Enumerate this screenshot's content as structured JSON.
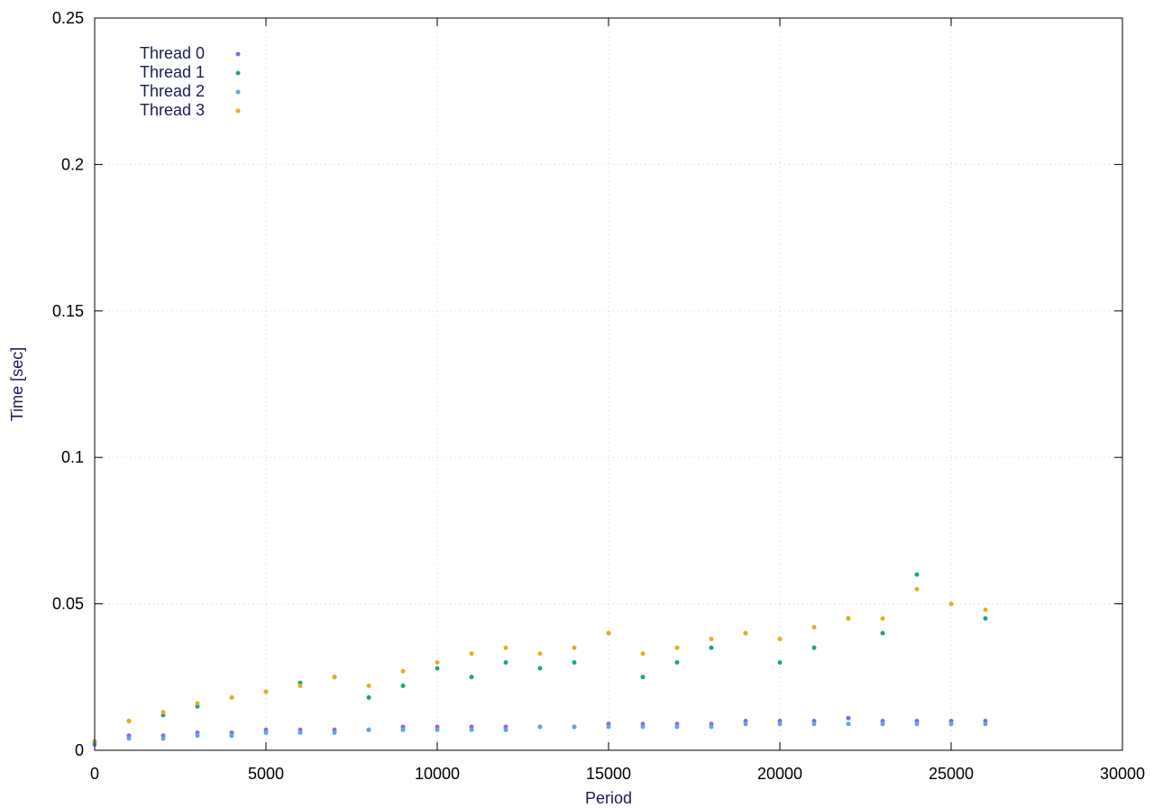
{
  "chart_data": {
    "type": "scatter",
    "title": "",
    "xlabel": "Period",
    "ylabel": "Time [sec]",
    "xlim": [
      0,
      30000
    ],
    "ylim": [
      0,
      0.25
    ],
    "xticks": [
      "0",
      "5000",
      "10000",
      "15000",
      "20000",
      "25000",
      "30000"
    ],
    "yticks": [
      "0",
      "0.05",
      "0.1",
      "0.15",
      "0.2",
      "0.25"
    ],
    "grid": true,
    "legend_position": "top-left",
    "series": [
      {
        "name": "Thread 0",
        "color": "#9467d8",
        "x": [
          0,
          1000,
          2000,
          3000,
          4000,
          5000,
          6000,
          7000,
          8000,
          9000,
          10000,
          11000,
          12000,
          13000,
          14000,
          15000,
          16000,
          17000,
          18000,
          19000,
          20000,
          21000,
          22000,
          23000,
          24000,
          25000,
          26000
        ],
        "y": [
          0.002,
          0.005,
          0.005,
          0.006,
          0.006,
          0.007,
          0.007,
          0.007,
          0.007,
          0.008,
          0.008,
          0.008,
          0.008,
          0.008,
          0.008,
          0.009,
          0.009,
          0.009,
          0.009,
          0.01,
          0.01,
          0.01,
          0.011,
          0.01,
          0.01,
          0.01,
          0.01
        ]
      },
      {
        "name": "Thread 1",
        "color": "#1ea384",
        "x": [
          0,
          1000,
          2000,
          3000,
          4000,
          5000,
          6000,
          7000,
          8000,
          9000,
          10000,
          11000,
          12000,
          13000,
          14000,
          15000,
          16000,
          17000,
          18000,
          19000,
          20000,
          21000,
          22000,
          23000,
          24000,
          25000,
          26000
        ],
        "y": [
          0.003,
          0.01,
          0.012,
          0.015,
          0.018,
          0.02,
          0.023,
          0.025,
          0.018,
          0.022,
          0.028,
          0.025,
          0.03,
          0.028,
          0.03,
          0.04,
          0.025,
          0.03,
          0.035,
          0.04,
          0.03,
          0.035,
          0.045,
          0.04,
          0.06,
          0.05,
          0.045
        ]
      },
      {
        "name": "Thread 2",
        "color": "#5aa9e8",
        "x": [
          0,
          1000,
          2000,
          3000,
          4000,
          5000,
          6000,
          7000,
          8000,
          9000,
          10000,
          11000,
          12000,
          13000,
          14000,
          15000,
          16000,
          17000,
          18000,
          19000,
          20000,
          21000,
          22000,
          23000,
          24000,
          25000,
          26000
        ],
        "y": [
          0.002,
          0.004,
          0.004,
          0.005,
          0.005,
          0.006,
          0.006,
          0.006,
          0.007,
          0.007,
          0.007,
          0.007,
          0.007,
          0.008,
          0.008,
          0.008,
          0.008,
          0.008,
          0.008,
          0.009,
          0.009,
          0.009,
          0.009,
          0.009,
          0.009,
          0.009,
          0.009
        ]
      },
      {
        "name": "Thread 3",
        "color": "#e2b021",
        "x": [
          0,
          1000,
          2000,
          3000,
          4000,
          5000,
          6000,
          7000,
          8000,
          9000,
          10000,
          11000,
          12000,
          13000,
          14000,
          15000,
          16000,
          17000,
          18000,
          19000,
          20000,
          21000,
          22000,
          23000,
          24000,
          25000,
          26000
        ],
        "y": [
          0.003,
          0.01,
          0.013,
          0.016,
          0.018,
          0.02,
          0.022,
          0.025,
          0.022,
          0.027,
          0.03,
          0.033,
          0.035,
          0.033,
          0.035,
          0.04,
          0.033,
          0.035,
          0.038,
          0.04,
          0.038,
          0.042,
          0.045,
          0.045,
          0.055,
          0.05,
          0.048
        ]
      }
    ]
  }
}
